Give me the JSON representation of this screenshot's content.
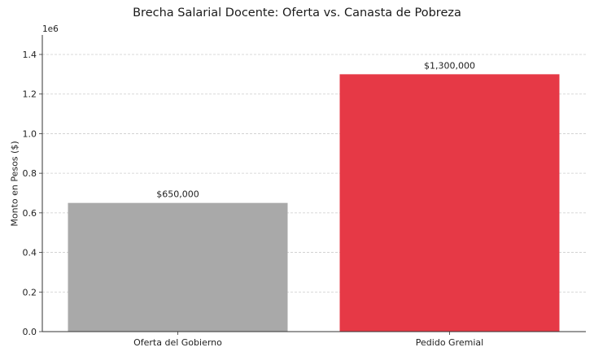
{
  "chart_data": {
    "type": "bar",
    "title": "Brecha Salarial Docente: Oferta vs. Canasta de Pobreza",
    "xlabel": "",
    "ylabel": "Monto en Pesos ($)",
    "y_offset_label": "1e6",
    "ylim": [
      0,
      1500000
    ],
    "yticks": [
      0.0,
      0.2,
      0.4,
      0.6,
      0.8,
      1.0,
      1.2,
      1.4
    ],
    "ytick_labels": [
      "0.0",
      "0.2",
      "0.4",
      "0.6",
      "0.8",
      "1.0",
      "1.2",
      "1.4"
    ],
    "grid": {
      "y": true,
      "x": false,
      "style": "dashed"
    },
    "legend": null,
    "categories": [
      "Oferta del Gobierno",
      "Pedido Gremial"
    ],
    "values": [
      650000,
      1300000
    ],
    "value_labels": [
      "$650,000",
      "$1,300,000"
    ],
    "colors": [
      "#a9a9a9",
      "#e63946"
    ]
  }
}
